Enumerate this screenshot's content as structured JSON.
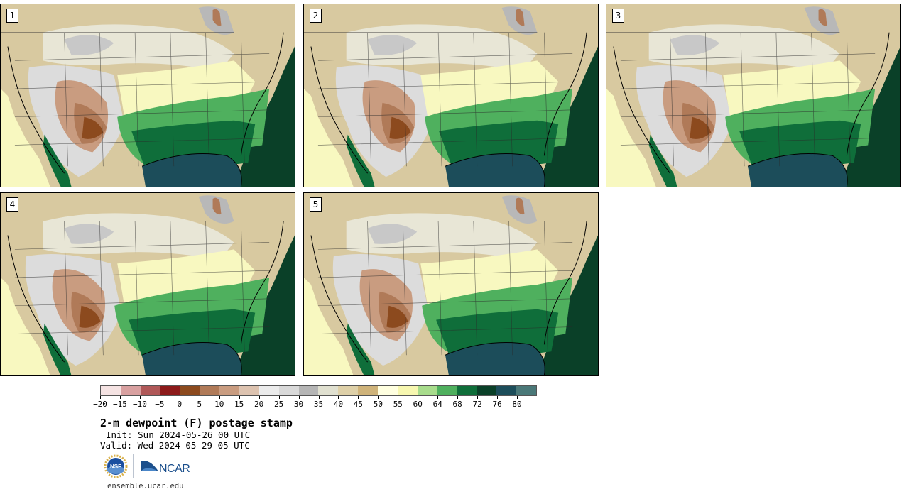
{
  "panels": [
    {
      "label": "1"
    },
    {
      "label": "2"
    },
    {
      "label": "3"
    },
    {
      "label": "4"
    },
    {
      "label": "5"
    }
  ],
  "colorbar": {
    "colors": [
      "#f5e3e3",
      "#d8a0a0",
      "#b05858",
      "#8c1a1a",
      "#8c4a1e",
      "#b07a58",
      "#c99c80",
      "#ddc3b0",
      "#ececec",
      "#d9d9d9",
      "#b5b5b5",
      "#e0e0d0",
      "#ded0a8",
      "#cfb37a",
      "#ffffe0",
      "#f7f7b0",
      "#a8dc8c",
      "#4fb05e",
      "#0f6e3a",
      "#0a4028",
      "#1c4d5a",
      "#4a7878"
    ],
    "tick_labels": [
      "−20",
      "−15",
      "−10",
      "−5",
      "0",
      "5",
      "10",
      "15",
      "20",
      "25",
      "30",
      "35",
      "40",
      "45",
      "50",
      "55",
      "60",
      "64",
      "68",
      "72",
      "76",
      "80"
    ]
  },
  "title": "2-m dewpoint (F) postage stamp",
  "init": "Init: Sun 2024-05-26 00 UTC",
  "valid": "Valid: Wed 2024-05-29 05 UTC",
  "logos": {
    "left": "NSF",
    "right": "NCAR",
    "left_color": "#1b4fa0",
    "right_color": "#1b4f8c"
  },
  "footer_url": "ensemble.ucar.edu"
}
